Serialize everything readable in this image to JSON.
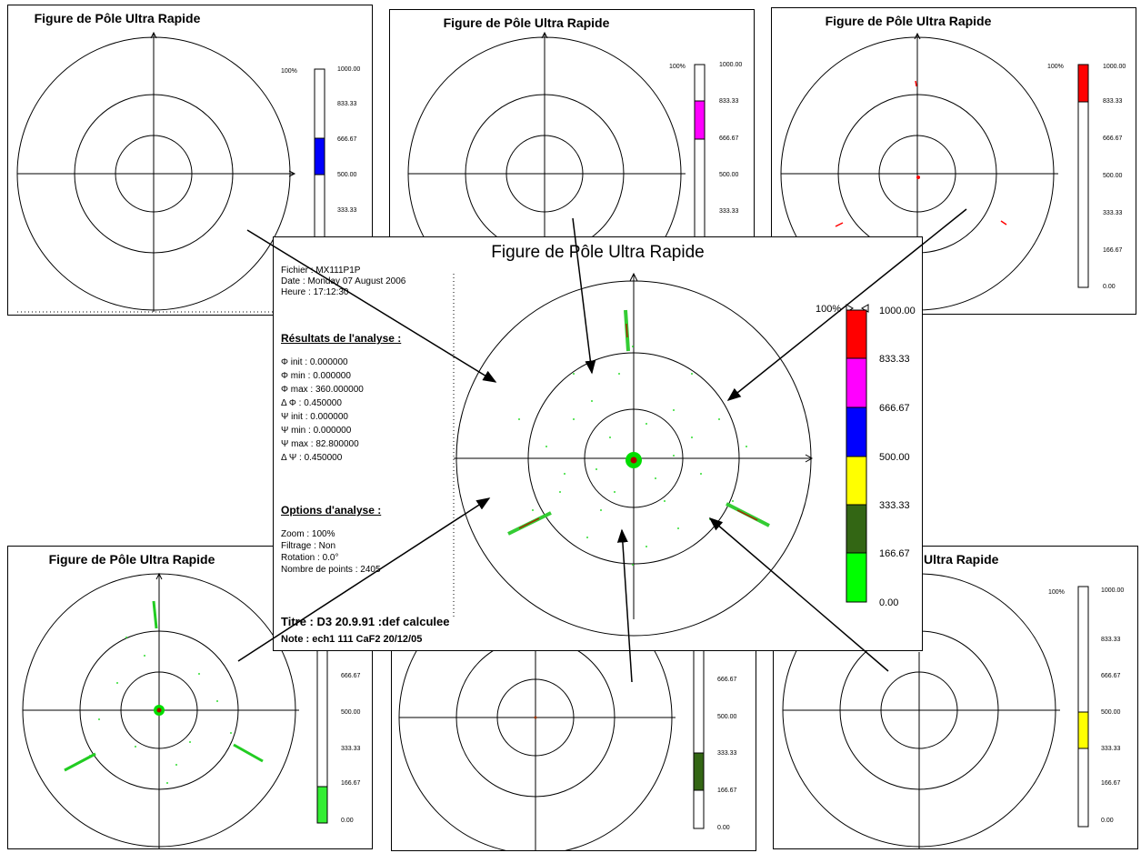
{
  "figure_title": "Figure de Pôle Ultra Rapide",
  "partial_title": "Ultra Rapide",
  "scale": {
    "top_pct": "100%",
    "labels": [
      "1000.00",
      "833.33",
      "666.67",
      "500.00",
      "333.33",
      "166.67",
      "0.00"
    ],
    "colors": [
      "#ff0000",
      "#ff00ff",
      "#0000ff",
      "#ffff00",
      "#336614",
      "#00ff00"
    ]
  },
  "info": {
    "fichier": "Fichier : MX111P1P",
    "date": "Date : Monday 07 August 2006",
    "heure": "Heure : 17:12:30",
    "resultats_heading": "Résultats de l'analyse :",
    "params": [
      "Φ init : 0.000000",
      "Φ min : 0.000000",
      "Φ max : 360.000000",
      "Δ Φ : 0.450000",
      "Ψ init : 0.000000",
      "Ψ min : 0.000000",
      "Ψ max : 82.800000",
      "Δ Ψ : 0.450000"
    ],
    "options_heading": "Options d'analyse :",
    "options": [
      "Zoom : 100%",
      "Filtrage : Non",
      "Rotation : 0.0°",
      "Nombre de points : 2405"
    ],
    "titre": "Titre : D3 20.9.91 :def calculee",
    "note": "Note : ech1 111 CaF2 20/12/05"
  }
}
